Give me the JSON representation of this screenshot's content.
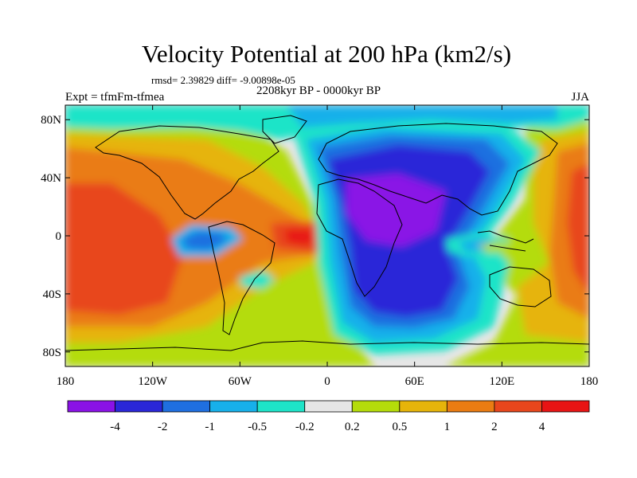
{
  "header": {
    "title": "Velocity Potential at 200 hPa (km2/s)",
    "stats": "rmsd= 2.39829 diff= -9.00898e-05",
    "experiment": "Expt = tfmFm-tfmea",
    "period": "2208kyr BP - 0000kyr BP",
    "season": "JJA"
  },
  "axes": {
    "lat_labels": [
      "80N",
      "40N",
      "0",
      "40S",
      "80S"
    ],
    "lat_values": [
      80,
      40,
      0,
      -40,
      -80
    ],
    "lon_labels": [
      "180",
      "120W",
      "60W",
      "0",
      "60E",
      "120E",
      "180"
    ],
    "lon_values": [
      -180,
      -120,
      -60,
      0,
      60,
      120,
      180
    ],
    "lon_range": [
      -180,
      180
    ],
    "lat_range": [
      -90,
      90
    ]
  },
  "colorbar": {
    "labels": [
      "-4",
      "-2",
      "-1",
      "-0.5",
      "-0.2",
      "0.2",
      "0.5",
      "1",
      "2",
      "4"
    ],
    "colors": [
      "#8a12e6",
      "#2a27d8",
      "#1f6fe0",
      "#17b0ea",
      "#1ee4c8",
      "#e6e6e6",
      "#b4dc0a",
      "#e6b40a",
      "#ea7c12",
      "#e8461c",
      "#e81414"
    ]
  },
  "chart_data": {
    "type": "contour_map",
    "variable": "Velocity Potential at 200 hPa",
    "units": "km2/s",
    "levels": [
      -4,
      -2,
      -1,
      -0.5,
      -0.2,
      0.2,
      0.5,
      1,
      2,
      4
    ],
    "features": [
      {
        "name": "central Pacific maximum",
        "lon": -160,
        "lat": -5,
        "value": 3
      },
      {
        "name": "tropical Atlantic maximum",
        "lon": -15,
        "lat": 2,
        "value": 4.5
      },
      {
        "name": "western Pacific maximum",
        "lon": 172,
        "lat": 25,
        "value": 2.5
      },
      {
        "name": "Africa / Indian Ocean minimum",
        "lon": 55,
        "lat": 15,
        "value": -4.5
      },
      {
        "name": "southern Indian Ocean minimum",
        "lon": 65,
        "lat": -30,
        "value": -2.5
      },
      {
        "name": "northern hemisphere negative belt",
        "lon": 30,
        "lat": 75,
        "value": -0.6
      },
      {
        "name": "tropical eastern Pacific minimum",
        "lon": -90,
        "lat": -5,
        "value": -0.8
      },
      {
        "name": "Maritime Continent dipole minimum",
        "lon": 110,
        "lat": -5,
        "value": -0.7
      }
    ]
  }
}
